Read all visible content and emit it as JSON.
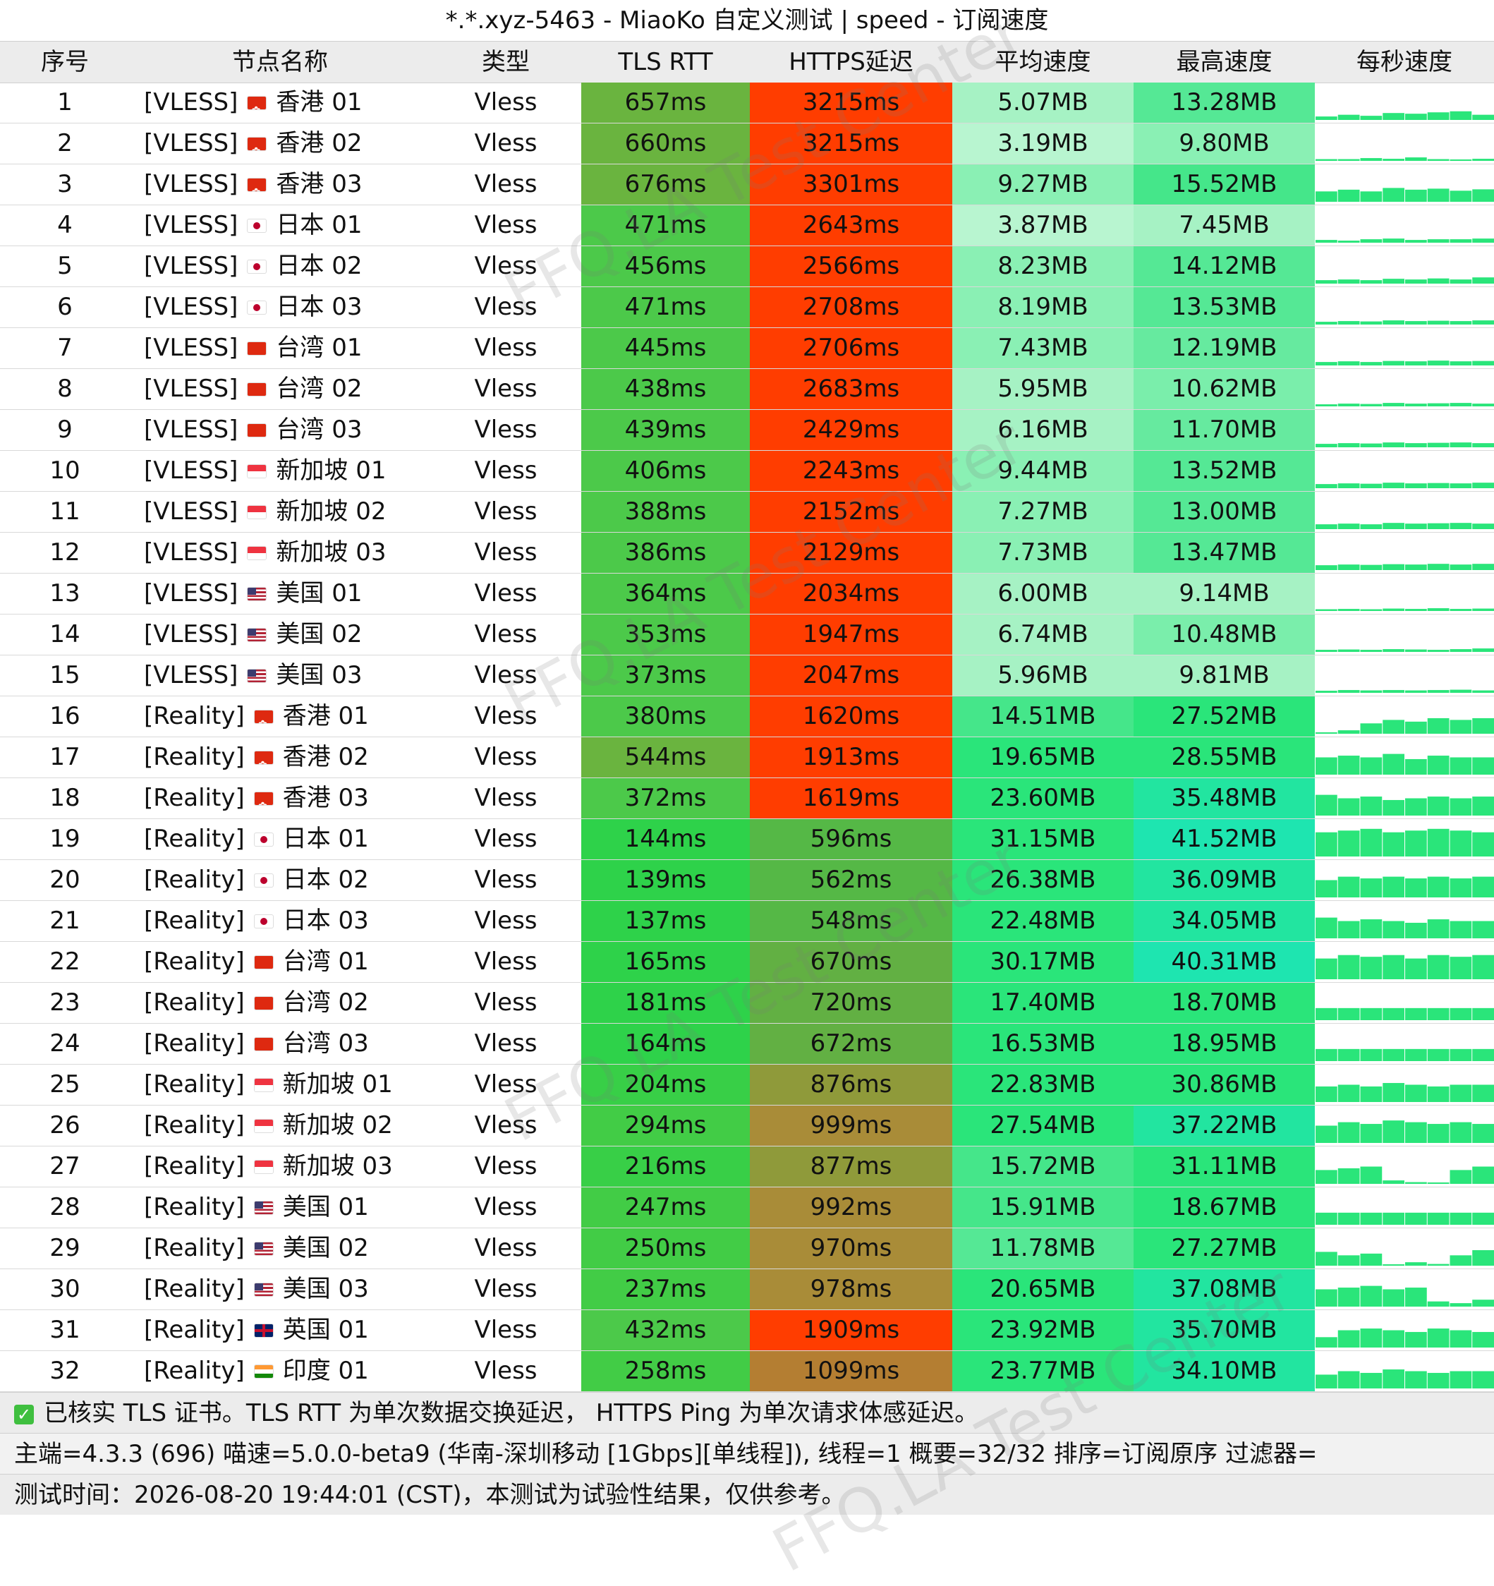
{
  "title": "*.*.xyz-5463 - MiaoKo 自定义测试 | speed - 订阅速度",
  "headers": [
    "序号",
    "节点名称",
    "类型",
    "TLS RTT",
    "HTTPS延迟",
    "平均速度",
    "最高速度",
    "每秒速度"
  ],
  "rows": [
    {
      "no": "1",
      "tag": "[VLESS]",
      "flag": "hk",
      "name": "香港 01",
      "type": "Vless",
      "tls": "657ms",
      "https": "3215ms",
      "avg": "5.07MB",
      "max": "13.28MB",
      "tls_bg": "#6ab43f",
      "https_bg": "#ff3d00",
      "avg_bg": "#a6f2c4",
      "max_bg": "#55e895",
      "spark": [
        0.1,
        0.15,
        0.12,
        0.2,
        0.18,
        0.22,
        0.25,
        0.15
      ]
    },
    {
      "no": "2",
      "tag": "[VLESS]",
      "flag": "hk",
      "name": "香港 02",
      "type": "Vless",
      "tls": "660ms",
      "https": "3215ms",
      "avg": "3.19MB",
      "max": "9.80MB",
      "tls_bg": "#6ab43f",
      "https_bg": "#ff3d00",
      "avg_bg": "#b8f5d0",
      "max_bg": "#8af0b4",
      "spark": [
        0.05,
        0.05,
        0.08,
        0.06,
        0.1,
        0.05,
        0.04,
        0.06
      ]
    },
    {
      "no": "3",
      "tag": "[VLESS]",
      "flag": "hk",
      "name": "香港 03",
      "type": "Vless",
      "tls": "676ms",
      "https": "3301ms",
      "avg": "9.27MB",
      "max": "15.52MB",
      "tls_bg": "#6ab43f",
      "https_bg": "#ff3d00",
      "avg_bg": "#8af0b4",
      "max_bg": "#45e68a",
      "spark": [
        0.3,
        0.35,
        0.3,
        0.4,
        0.35,
        0.38,
        0.32,
        0.36
      ]
    },
    {
      "no": "4",
      "tag": "[VLESS]",
      "flag": "jp",
      "name": "日本 01",
      "type": "Vless",
      "tls": "471ms",
      "https": "2643ms",
      "avg": "3.87MB",
      "max": "7.45MB",
      "tls_bg": "#4cc94a",
      "https_bg": "#ff3d00",
      "avg_bg": "#b8f5d0",
      "max_bg": "#a6f2c4",
      "spark": [
        0.08,
        0.06,
        0.1,
        0.12,
        0.08,
        0.1,
        0.1,
        0.12
      ]
    },
    {
      "no": "5",
      "tag": "[VLESS]",
      "flag": "jp",
      "name": "日本 02",
      "type": "Vless",
      "tls": "456ms",
      "https": "2566ms",
      "avg": "8.23MB",
      "max": "14.12MB",
      "tls_bg": "#4cc94a",
      "https_bg": "#ff3d00",
      "avg_bg": "#8af0b4",
      "max_bg": "#55e895",
      "spark": [
        0.1,
        0.12,
        0.1,
        0.14,
        0.12,
        0.15,
        0.12,
        0.18
      ]
    },
    {
      "no": "6",
      "tag": "[VLESS]",
      "flag": "jp",
      "name": "日本 03",
      "type": "Vless",
      "tls": "471ms",
      "https": "2708ms",
      "avg": "8.19MB",
      "max": "13.53MB",
      "tls_bg": "#4cc94a",
      "https_bg": "#ff3d00",
      "avg_bg": "#8af0b4",
      "max_bg": "#55e895",
      "spark": [
        0.08,
        0.1,
        0.09,
        0.12,
        0.1,
        0.11,
        0.1,
        0.12
      ]
    },
    {
      "no": "7",
      "tag": "[VLESS]",
      "flag": "tw",
      "name": "台湾 01",
      "type": "Vless",
      "tls": "445ms",
      "https": "2706ms",
      "avg": "7.43MB",
      "max": "12.19MB",
      "tls_bg": "#4cc94a",
      "https_bg": "#ff3d00",
      "avg_bg": "#8af0b4",
      "max_bg": "#66ea9f",
      "spark": [
        0.1,
        0.12,
        0.1,
        0.13,
        0.12,
        0.14,
        0.12,
        0.13
      ]
    },
    {
      "no": "8",
      "tag": "[VLESS]",
      "flag": "tw",
      "name": "台湾 02",
      "type": "Vless",
      "tls": "438ms",
      "https": "2683ms",
      "avg": "5.95MB",
      "max": "10.62MB",
      "tls_bg": "#4cc94a",
      "https_bg": "#ff3d00",
      "avg_bg": "#a6f2c4",
      "max_bg": "#7aeeab",
      "spark": [
        0.06,
        0.08,
        0.07,
        0.1,
        0.08,
        0.09,
        0.1,
        0.08
      ]
    },
    {
      "no": "9",
      "tag": "[VLESS]",
      "flag": "tw",
      "name": "台湾 03",
      "type": "Vless",
      "tls": "439ms",
      "https": "2429ms",
      "avg": "6.16MB",
      "max": "11.70MB",
      "tls_bg": "#4cc94a",
      "https_bg": "#ff3d00",
      "avg_bg": "#a6f2c4",
      "max_bg": "#66ea9f",
      "spark": [
        0.1,
        0.12,
        0.11,
        0.14,
        0.12,
        0.13,
        0.14,
        0.12
      ]
    },
    {
      "no": "10",
      "tag": "[VLESS]",
      "flag": "sg",
      "name": "新加坡 01",
      "type": "Vless",
      "tls": "406ms",
      "https": "2243ms",
      "avg": "9.44MB",
      "max": "13.52MB",
      "tls_bg": "#4cc94a",
      "https_bg": "#ff3d00",
      "avg_bg": "#8af0b4",
      "max_bg": "#55e895",
      "spark": [
        0.12,
        0.14,
        0.13,
        0.16,
        0.14,
        0.15,
        0.14,
        0.16
      ]
    },
    {
      "no": "11",
      "tag": "[VLESS]",
      "flag": "sg",
      "name": "新加坡 02",
      "type": "Vless",
      "tls": "388ms",
      "https": "2152ms",
      "avg": "7.27MB",
      "max": "13.00MB",
      "tls_bg": "#4cc94a",
      "https_bg": "#ff3d00",
      "avg_bg": "#8af0b4",
      "max_bg": "#55e895",
      "spark": [
        0.14,
        0.16,
        0.14,
        0.18,
        0.16,
        0.17,
        0.18,
        0.16
      ]
    },
    {
      "no": "12",
      "tag": "[VLESS]",
      "flag": "sg",
      "name": "新加坡 03",
      "type": "Vless",
      "tls": "386ms",
      "https": "2129ms",
      "avg": "7.73MB",
      "max": "13.47MB",
      "tls_bg": "#4cc94a",
      "https_bg": "#ff3d00",
      "avg_bg": "#8af0b4",
      "max_bg": "#55e895",
      "spark": [
        0.14,
        0.16,
        0.15,
        0.17,
        0.16,
        0.18,
        0.16,
        0.18
      ]
    },
    {
      "no": "13",
      "tag": "[VLESS]",
      "flag": "us",
      "name": "美国 01",
      "type": "Vless",
      "tls": "364ms",
      "https": "2034ms",
      "avg": "6.00MB",
      "max": "9.14MB",
      "tls_bg": "#4cc94a",
      "https_bg": "#ff3d00",
      "avg_bg": "#a6f2c4",
      "max_bg": "#a6f2c4",
      "spark": [
        0.05,
        0.06,
        0.05,
        0.07,
        0.06,
        0.08,
        0.06,
        0.07
      ]
    },
    {
      "no": "14",
      "tag": "[VLESS]",
      "flag": "us",
      "name": "美国 02",
      "type": "Vless",
      "tls": "353ms",
      "https": "1947ms",
      "avg": "6.74MB",
      "max": "10.48MB",
      "tls_bg": "#4cc94a",
      "https_bg": "#ff3d00",
      "avg_bg": "#a6f2c4",
      "max_bg": "#7aeeab",
      "spark": [
        0.06,
        0.07,
        0.06,
        0.08,
        0.07,
        0.06,
        0.08,
        0.1
      ]
    },
    {
      "no": "15",
      "tag": "[VLESS]",
      "flag": "us",
      "name": "美国 03",
      "type": "Vless",
      "tls": "373ms",
      "https": "2047ms",
      "avg": "5.96MB",
      "max": "9.81MB",
      "tls_bg": "#4cc94a",
      "https_bg": "#ff3d00",
      "avg_bg": "#a6f2c4",
      "max_bg": "#a6f2c4",
      "spark": [
        0.06,
        0.08,
        0.07,
        0.08,
        0.07,
        0.08,
        0.09,
        0.07
      ]
    },
    {
      "no": "16",
      "tag": "[Reality]",
      "flag": "hk",
      "name": "香港 01",
      "type": "Vless",
      "tls": "380ms",
      "https": "1620ms",
      "avg": "14.51MB",
      "max": "27.52MB",
      "tls_bg": "#4cc94a",
      "https_bg": "#ff3d00",
      "avg_bg": "#45e68a",
      "max_bg": "#2ae57a",
      "spark": [
        0.0,
        0.1,
        0.3,
        0.4,
        0.35,
        0.45,
        0.4,
        0.45
      ]
    },
    {
      "no": "17",
      "tag": "[Reality]",
      "flag": "hk",
      "name": "香港 02",
      "type": "Vless",
      "tls": "544ms",
      "https": "1913ms",
      "avg": "19.65MB",
      "max": "28.55MB",
      "tls_bg": "#6ab43f",
      "https_bg": "#ff3d00",
      "avg_bg": "#2ae57a",
      "max_bg": "#2ae57a",
      "spark": [
        0.5,
        0.55,
        0.5,
        0.6,
        0.45,
        0.55,
        0.5,
        0.5
      ]
    },
    {
      "no": "18",
      "tag": "[Reality]",
      "flag": "hk",
      "name": "香港 03",
      "type": "Vless",
      "tls": "372ms",
      "https": "1619ms",
      "avg": "23.60MB",
      "max": "35.48MB",
      "tls_bg": "#4cc94a",
      "https_bg": "#ff3d00",
      "avg_bg": "#2ae57a",
      "max_bg": "#22e5a0",
      "spark": [
        0.6,
        0.5,
        0.55,
        0.45,
        0.5,
        0.55,
        0.5,
        0.55
      ]
    },
    {
      "no": "19",
      "tag": "[Reality]",
      "flag": "jp",
      "name": "日本 01",
      "type": "Vless",
      "tls": "144ms",
      "https": "596ms",
      "avg": "31.15MB",
      "max": "41.52MB",
      "tls_bg": "#2ed24a",
      "https_bg": "#55b846",
      "avg_bg": "#2ae57a",
      "max_bg": "#1ee5b0",
      "spark": [
        0.7,
        0.75,
        0.8,
        0.7,
        0.75,
        0.8,
        0.75,
        0.7
      ]
    },
    {
      "no": "20",
      "tag": "[Reality]",
      "flag": "jp",
      "name": "日本 02",
      "type": "Vless",
      "tls": "139ms",
      "https": "562ms",
      "avg": "26.38MB",
      "max": "36.09MB",
      "tls_bg": "#2ed24a",
      "https_bg": "#55b846",
      "avg_bg": "#2ae57a",
      "max_bg": "#22e5a0",
      "spark": [
        0.5,
        0.6,
        0.55,
        0.6,
        0.55,
        0.6,
        0.55,
        0.6
      ]
    },
    {
      "no": "21",
      "tag": "[Reality]",
      "flag": "jp",
      "name": "日本 03",
      "type": "Vless",
      "tls": "137ms",
      "https": "548ms",
      "avg": "22.48MB",
      "max": "34.05MB",
      "tls_bg": "#2ed24a",
      "https_bg": "#55b846",
      "avg_bg": "#2ae57a",
      "max_bg": "#22e5a0",
      "spark": [
        0.6,
        0.5,
        0.55,
        0.5,
        0.45,
        0.55,
        0.5,
        0.5
      ]
    },
    {
      "no": "22",
      "tag": "[Reality]",
      "flag": "tw",
      "name": "台湾 01",
      "type": "Vless",
      "tls": "165ms",
      "https": "670ms",
      "avg": "30.17MB",
      "max": "40.31MB",
      "tls_bg": "#2ed24a",
      "https_bg": "#62b043",
      "avg_bg": "#2ae57a",
      "max_bg": "#1ee5b0",
      "spark": [
        0.6,
        0.7,
        0.65,
        0.7,
        0.6,
        0.7,
        0.65,
        0.7
      ]
    },
    {
      "no": "23",
      "tag": "[Reality]",
      "flag": "tw",
      "name": "台湾 02",
      "type": "Vless",
      "tls": "181ms",
      "https": "720ms",
      "avg": "17.40MB",
      "max": "18.70MB",
      "tls_bg": "#2ed24a",
      "https_bg": "#62b043",
      "avg_bg": "#2ae57a",
      "max_bg": "#2ae57a",
      "spark": [
        0.35,
        0.35,
        0.35,
        0.35,
        0.35,
        0.35,
        0.35,
        0.35
      ]
    },
    {
      "no": "24",
      "tag": "[Reality]",
      "flag": "tw",
      "name": "台湾 03",
      "type": "Vless",
      "tls": "164ms",
      "https": "672ms",
      "avg": "16.53MB",
      "max": "18.95MB",
      "tls_bg": "#2ed24a",
      "https_bg": "#62b043",
      "avg_bg": "#2ae57a",
      "max_bg": "#2ae57a",
      "spark": [
        0.35,
        0.35,
        0.35,
        0.35,
        0.35,
        0.35,
        0.35,
        0.35
      ]
    },
    {
      "no": "25",
      "tag": "[Reality]",
      "flag": "sg",
      "name": "新加坡 01",
      "type": "Vless",
      "tls": "204ms",
      "https": "876ms",
      "avg": "22.83MB",
      "max": "30.86MB",
      "tls_bg": "#38cf47",
      "https_bg": "#8f9a3a",
      "avg_bg": "#2ae57a",
      "max_bg": "#2ae57a",
      "spark": [
        0.45,
        0.5,
        0.45,
        0.55,
        0.5,
        0.45,
        0.5,
        0.5
      ]
    },
    {
      "no": "26",
      "tag": "[Reality]",
      "flag": "sg",
      "name": "新加坡 02",
      "type": "Vless",
      "tls": "294ms",
      "https": "999ms",
      "avg": "27.54MB",
      "max": "37.22MB",
      "tls_bg": "#42cc46",
      "https_bg": "#a98c38",
      "avg_bg": "#2ae57a",
      "max_bg": "#22e5a0",
      "spark": [
        0.5,
        0.6,
        0.55,
        0.65,
        0.6,
        0.55,
        0.6,
        0.55
      ]
    },
    {
      "no": "27",
      "tag": "[Reality]",
      "flag": "sg",
      "name": "新加坡 03",
      "type": "Vless",
      "tls": "216ms",
      "https": "877ms",
      "avg": "15.72MB",
      "max": "31.11MB",
      "tls_bg": "#38cf47",
      "https_bg": "#8f9a3a",
      "avg_bg": "#45e68a",
      "max_bg": "#2ae57a",
      "spark": [
        0.4,
        0.45,
        0.5,
        0.1,
        0.05,
        0.0,
        0.4,
        0.5
      ]
    },
    {
      "no": "28",
      "tag": "[Reality]",
      "flag": "us",
      "name": "美国 01",
      "type": "Vless",
      "tls": "247ms",
      "https": "992ms",
      "avg": "15.91MB",
      "max": "18.67MB",
      "tls_bg": "#42cc46",
      "https_bg": "#a98c38",
      "avg_bg": "#45e68a",
      "max_bg": "#2ae57a",
      "spark": [
        0.35,
        0.35,
        0.35,
        0.35,
        0.35,
        0.35,
        0.35,
        0.35
      ]
    },
    {
      "no": "29",
      "tag": "[Reality]",
      "flag": "us",
      "name": "美国 02",
      "type": "Vless",
      "tls": "250ms",
      "https": "970ms",
      "avg": "11.78MB",
      "max": "27.27MB",
      "tls_bg": "#42cc46",
      "https_bg": "#a98c38",
      "avg_bg": "#55e895",
      "max_bg": "#2ae57a",
      "spark": [
        0.4,
        0.3,
        0.35,
        0.0,
        0.1,
        0.05,
        0.3,
        0.45
      ]
    },
    {
      "no": "30",
      "tag": "[Reality]",
      "flag": "us",
      "name": "美国 03",
      "type": "Vless",
      "tls": "237ms",
      "https": "978ms",
      "avg": "20.65MB",
      "max": "37.08MB",
      "tls_bg": "#42cc46",
      "https_bg": "#a98c38",
      "avg_bg": "#2ae57a",
      "max_bg": "#22e5a0",
      "spark": [
        0.5,
        0.55,
        0.6,
        0.5,
        0.55,
        0.15,
        0.1,
        0.2
      ]
    },
    {
      "no": "31",
      "tag": "[Reality]",
      "flag": "uk",
      "name": "英国 01",
      "type": "Vless",
      "tls": "432ms",
      "https": "1909ms",
      "avg": "23.92MB",
      "max": "35.70MB",
      "tls_bg": "#4cc94a",
      "https_bg": "#ff3d00",
      "avg_bg": "#2ae57a",
      "max_bg": "#22e5a0",
      "spark": [
        0.3,
        0.5,
        0.55,
        0.5,
        0.45,
        0.55,
        0.5,
        0.45
      ]
    },
    {
      "no": "32",
      "tag": "[Reality]",
      "flag": "in",
      "name": "印度 01",
      "type": "Vless",
      "tls": "258ms",
      "https": "1099ms",
      "avg": "23.77MB",
      "max": "34.10MB",
      "tls_bg": "#42cc46",
      "https_bg": "#b47e32",
      "avg_bg": "#2ae57a",
      "max_bg": "#22e5a0",
      "spark": [
        0.4,
        0.5,
        0.45,
        0.55,
        0.5,
        0.45,
        0.5,
        0.5
      ]
    }
  ],
  "footer": {
    "line1": "已核实 TLS 证书。TLS RTT 为单次数据交换延迟， HTTPS Ping 为单次请求体感延迟。",
    "line2": "主端=4.3.3 (696) 喵速=5.0.0-beta9 (华南-深圳移动 [1Gbps][单线程]), 线程=1 概要=32/32 排序=订阅原序 过滤器=",
    "line3": "测试时间：2026-08-20 19:44:01 (CST)，本测试为试验性结果，仅供参考。"
  },
  "watermark": "FFQ.LA Test Center",
  "colors": {
    "spark_fill": "#2ae57a",
    "check": "#3fbf3f"
  }
}
